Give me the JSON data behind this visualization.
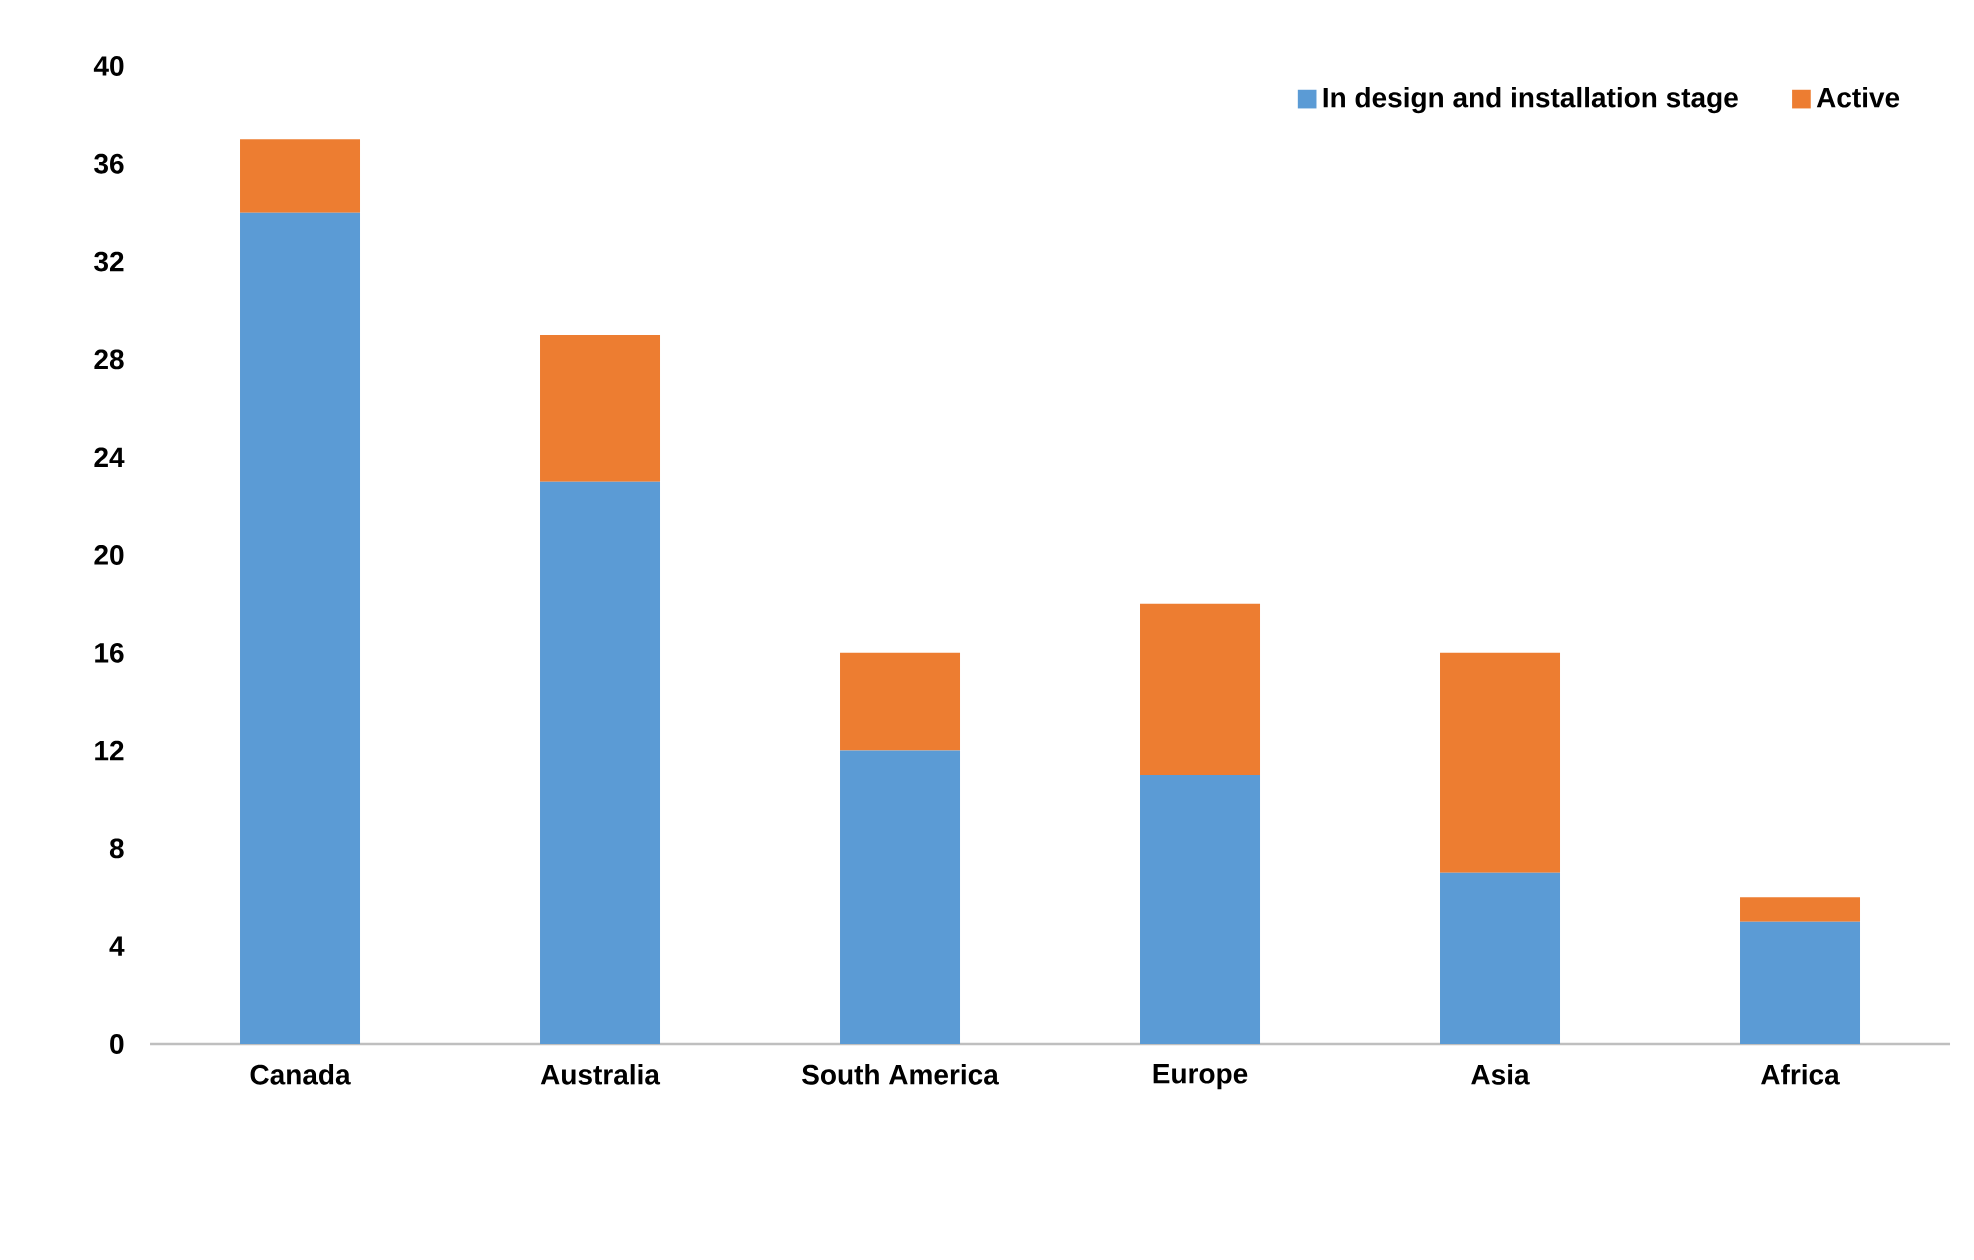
{
  "chart_data": {
    "type": "bar",
    "stacked": true,
    "categories": [
      "Canada",
      "Australia",
      "South America",
      "Europe",
      "Asia",
      "Africa"
    ],
    "series": [
      {
        "name": "In design and installation stage",
        "color": "#5b9bd5",
        "values": [
          34,
          23,
          12,
          11,
          7,
          5
        ]
      },
      {
        "name": "Active",
        "color": "#ed7d31",
        "values": [
          3,
          6,
          4,
          7,
          9,
          1
        ]
      }
    ],
    "ylim": [
      0,
      40
    ],
    "yticks": [
      0,
      4,
      8,
      12,
      16,
      20,
      24,
      28,
      32,
      36,
      40
    ],
    "grid": false,
    "legend": "top right"
  }
}
